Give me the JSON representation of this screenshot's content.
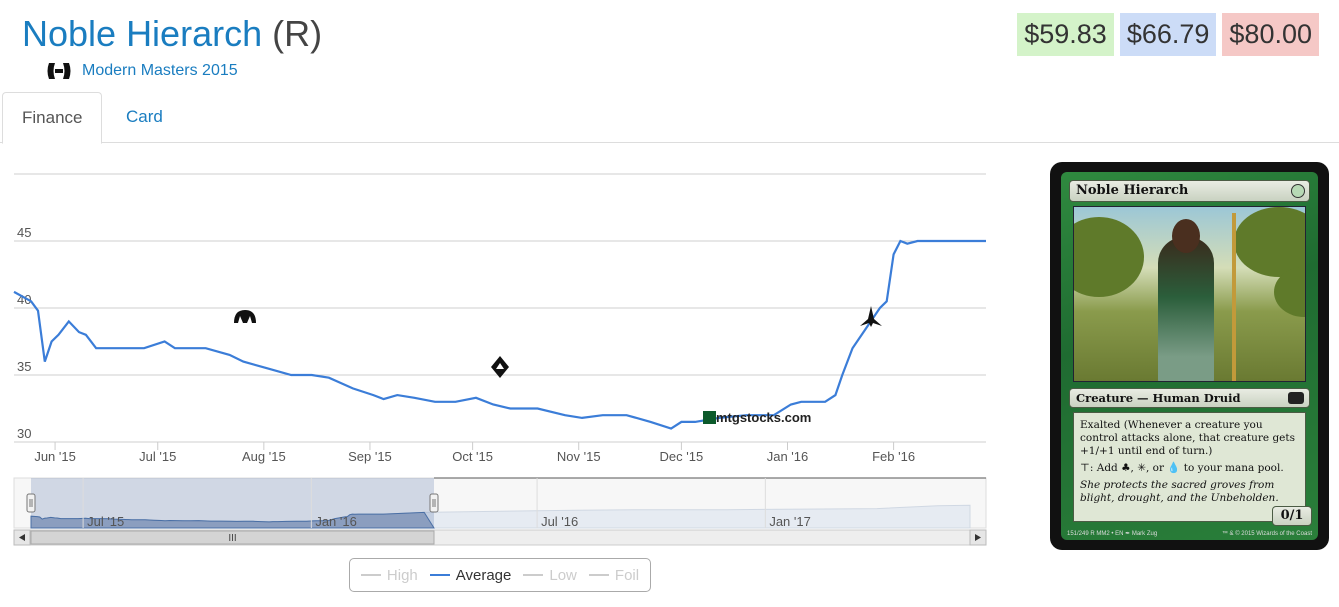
{
  "header": {
    "card_name": "Noble Hierarch",
    "rarity": "(R)",
    "set_name": "Modern Masters 2015",
    "set_icon": "modern-masters-2015-set-icon"
  },
  "prices": {
    "low": "$59.83",
    "average": "$66.79",
    "high": "$80.00",
    "colors": {
      "low": "#d4f3c9",
      "average": "#ccdcf7",
      "high": "#f5c8c6"
    }
  },
  "tabs": [
    {
      "label": "Finance",
      "active": true
    },
    {
      "label": "Card",
      "active": false
    }
  ],
  "chart_data": {
    "type": "line",
    "x": [
      "2015-05-20",
      "2015-05-25",
      "2015-05-27",
      "2015-05-29",
      "2015-05-31",
      "2015-06-02",
      "2015-06-05",
      "2015-06-08",
      "2015-06-10",
      "2015-06-13",
      "2015-06-17",
      "2015-06-21",
      "2015-06-27",
      "2015-07-03",
      "2015-07-06",
      "2015-07-09",
      "2015-07-15",
      "2015-07-22",
      "2015-07-26",
      "2015-08-02",
      "2015-08-09",
      "2015-08-15",
      "2015-08-20",
      "2015-08-27",
      "2015-09-02",
      "2015-09-05",
      "2015-09-09",
      "2015-09-14",
      "2015-09-20",
      "2015-09-26",
      "2015-10-02",
      "2015-10-07",
      "2015-10-12",
      "2015-10-20",
      "2015-10-28",
      "2015-11-02",
      "2015-11-08",
      "2015-11-15",
      "2015-11-22",
      "2015-11-28",
      "2015-12-01",
      "2015-12-05",
      "2015-12-12",
      "2015-12-20",
      "2015-12-28",
      "2016-01-02",
      "2016-01-05",
      "2016-01-12",
      "2016-01-15",
      "2016-01-17",
      "2016-01-20",
      "2016-01-24",
      "2016-01-28",
      "2016-01-30",
      "2016-02-01",
      "2016-02-03",
      "2016-02-05",
      "2016-02-08",
      "2016-02-10",
      "2016-02-15",
      "2016-02-28"
    ],
    "series": [
      {
        "name": "Average",
        "values": [
          41.2,
          40.5,
          39.8,
          36.0,
          37.5,
          38.0,
          39.0,
          38.2,
          38.0,
          37.0,
          37.0,
          37.0,
          37.0,
          37.5,
          37.0,
          37.0,
          37.0,
          36.5,
          36.0,
          35.5,
          35.0,
          35.0,
          34.8,
          34.0,
          33.5,
          33.2,
          33.5,
          33.3,
          33.0,
          33.0,
          33.3,
          32.8,
          32.5,
          32.5,
          32.0,
          31.8,
          32.0,
          32.0,
          31.5,
          31.0,
          31.5,
          31.5,
          31.8,
          32.0,
          32.0,
          32.8,
          33.0,
          33.0,
          33.5,
          35.0,
          37.0,
          38.5,
          40.0,
          40.5,
          44.0,
          45.0,
          44.8,
          45.0,
          45.0,
          45.0,
          45.0
        ]
      }
    ],
    "x_ticks": [
      "Jun '15",
      "Jul '15",
      "Aug '15",
      "Sep '15",
      "Oct '15",
      "Nov '15",
      "Dec '15",
      "Jan '16",
      "Feb '16"
    ],
    "y_ticks": [
      30,
      35,
      40,
      45
    ],
    "ylim": [
      30,
      50
    ],
    "grid": true,
    "watermark": "mtgstocks.com",
    "navigator": {
      "labels": [
        "Jul '15",
        "Jan '16",
        "Jul '16",
        "Jan '17"
      ],
      "scrollbar_grip": "III"
    },
    "legend": [
      {
        "label": "High",
        "visible": false
      },
      {
        "label": "Average",
        "visible": true
      },
      {
        "label": "Low",
        "visible": false
      },
      {
        "label": "Foil",
        "visible": false
      }
    ],
    "line_color": "#3b7dd8"
  },
  "card_image": {
    "title": "Noble Hierarch",
    "type_line": "Creature — Human Druid",
    "rules_exalted": "Exalted (Whenever a creature you control attacks alone, that creature gets +1/+1 until end of turn.)",
    "rules_mana": "⊤: Add ♣, ✳, or 💧 to your mana pool.",
    "flavor": "She protects the sacred groves from blight, drought, and the Unbeholden.",
    "pt": "0/1",
    "footer_left": "151/249 R MM2 • EN ✒ Mark Zug",
    "footer_right": "™ & © 2015 Wizards of the Coast"
  }
}
